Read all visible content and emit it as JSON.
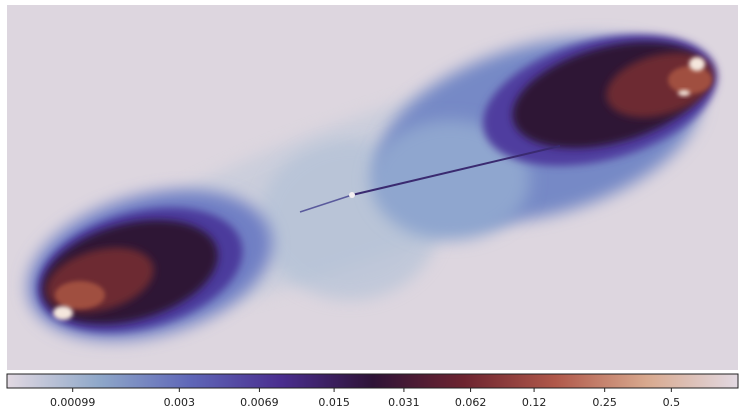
{
  "colorbar": {
    "scale": "log",
    "lim": [
      0.0005,
      1
    ],
    "ticks": [
      0.00099,
      0.003,
      0.0069,
      0.015,
      0.031,
      0.062,
      0.12,
      0.25,
      0.5
    ],
    "colors": [
      "#e2d9e2",
      "#8fa8c9",
      "#5f67b8",
      "#4a2e8f",
      "#2e1337",
      "#6d2430",
      "#b0584a",
      "#d8a98e",
      "#e2d9e2"
    ]
  }
}
